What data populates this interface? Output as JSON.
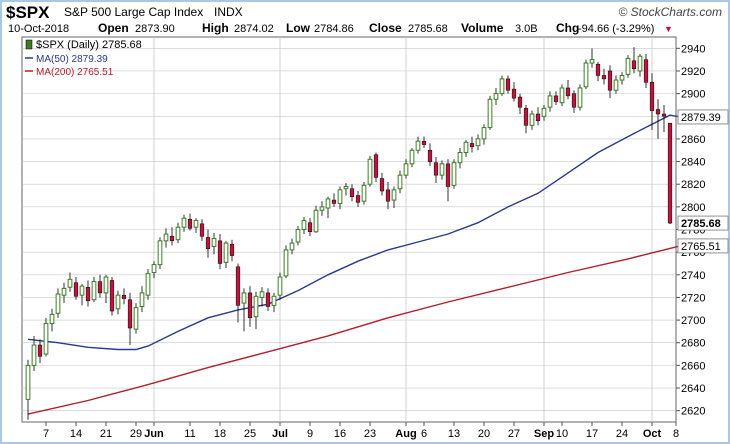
{
  "header": {
    "ticker": "$SPX",
    "name": "S&P 500 Large Cap Index",
    "exchange": "INDX",
    "brand": "© StockCharts.com",
    "date": "10-Oct-2018",
    "open_label": "Open",
    "open": "2873.90",
    "high_label": "High",
    "high": "2874.02",
    "low_label": "Low",
    "low": "2784.86",
    "close_label": "Close",
    "close": "2785.68",
    "volume_label": "Volume",
    "volume": "3.0B",
    "chg_label": "Chg",
    "chg": "-94.66 (-3.29%)",
    "chg_arrow": "▼"
  },
  "legend": {
    "price": "$SPX (Daily) 2785.68",
    "ma50": "MA(50) 2879.39",
    "ma200": "MA(200) 2765.51"
  },
  "colors": {
    "background": "#ffffff",
    "frame": "#a8c8e8",
    "plot_background": "#ffffff",
    "up": "#3b7d23",
    "down": "#c0143c",
    "ma50": "#2b3a8a",
    "ma200": "#b21e2e",
    "grid": "#c8c8c8",
    "tag_bg": "#ffffff",
    "last_tag_bg": "#ffffff"
  },
  "chart_data": {
    "type": "candlestick",
    "title": "$SPX S&P 500 Large Cap Index INDX",
    "ylim": [
      2610,
      2950
    ],
    "y_ticks": [
      2620,
      2640,
      2660,
      2680,
      2700,
      2720,
      2740,
      2760,
      2780,
      2800,
      2820,
      2840,
      2860,
      2880,
      2900,
      2920,
      2940
    ],
    "price_labels": {
      "close": "2785.68",
      "ma50": "2879.39",
      "ma200": "2765.51"
    },
    "x_labels": [
      {
        "label": "7",
        "month": false,
        "index": 3,
        "grid": false
      },
      {
        "label": "14",
        "month": false,
        "index": 8,
        "grid": false
      },
      {
        "label": "21",
        "month": false,
        "index": 13,
        "grid": false
      },
      {
        "label": "29",
        "month": false,
        "index": 18,
        "grid": false
      },
      {
        "label": "Jun",
        "month": true,
        "index": 21,
        "grid": true
      },
      {
        "label": "11",
        "month": false,
        "index": 27,
        "grid": false
      },
      {
        "label": "18",
        "month": false,
        "index": 32,
        "grid": false
      },
      {
        "label": "25",
        "month": false,
        "index": 37,
        "grid": false
      },
      {
        "label": "Jul",
        "month": true,
        "index": 42,
        "grid": true
      },
      {
        "label": "9",
        "month": false,
        "index": 47,
        "grid": false
      },
      {
        "label": "16",
        "month": false,
        "index": 52,
        "grid": false
      },
      {
        "label": "23",
        "month": false,
        "index": 57,
        "grid": false
      },
      {
        "label": "Aug",
        "month": true,
        "index": 63,
        "grid": true
      },
      {
        "label": "6",
        "month": false,
        "index": 66,
        "grid": false
      },
      {
        "label": "13",
        "month": false,
        "index": 71,
        "grid": false
      },
      {
        "label": "20",
        "month": false,
        "index": 76,
        "grid": false
      },
      {
        "label": "27",
        "month": false,
        "index": 81,
        "grid": false
      },
      {
        "label": "Sep",
        "month": true,
        "index": 86,
        "grid": true
      },
      {
        "label": "10",
        "month": false,
        "index": 89,
        "grid": false
      },
      {
        "label": "17",
        "month": false,
        "index": 94,
        "grid": false
      },
      {
        "label": "24",
        "month": false,
        "index": 99,
        "grid": false
      },
      {
        "label": "Oct",
        "month": true,
        "index": 104,
        "grid": true
      },
      {
        "label": "8",
        "month": false,
        "index": 108,
        "grid": false
      }
    ],
    "candles": [
      {
        "o": 2630,
        "h": 2665,
        "l": 2612,
        "c": 2660
      },
      {
        "o": 2660,
        "h": 2686,
        "l": 2655,
        "c": 2678
      },
      {
        "o": 2678,
        "h": 2683,
        "l": 2662,
        "c": 2668
      },
      {
        "o": 2670,
        "h": 2702,
        "l": 2668,
        "c": 2697
      },
      {
        "o": 2697,
        "h": 2710,
        "l": 2690,
        "c": 2705
      },
      {
        "o": 2706,
        "h": 2728,
        "l": 2702,
        "c": 2723
      },
      {
        "o": 2722,
        "h": 2733,
        "l": 2715,
        "c": 2728
      },
      {
        "o": 2729,
        "h": 2742,
        "l": 2725,
        "c": 2736
      },
      {
        "o": 2733,
        "h": 2738,
        "l": 2718,
        "c": 2721
      },
      {
        "o": 2722,
        "h": 2732,
        "l": 2713,
        "c": 2730
      },
      {
        "o": 2729,
        "h": 2735,
        "l": 2712,
        "c": 2717
      },
      {
        "o": 2718,
        "h": 2738,
        "l": 2716,
        "c": 2734
      },
      {
        "o": 2734,
        "h": 2740,
        "l": 2720,
        "c": 2724
      },
      {
        "o": 2724,
        "h": 2740,
        "l": 2715,
        "c": 2738
      },
      {
        "o": 2735,
        "h": 2738,
        "l": 2704,
        "c": 2708
      },
      {
        "o": 2710,
        "h": 2726,
        "l": 2705,
        "c": 2722
      },
      {
        "o": 2722,
        "h": 2728,
        "l": 2714,
        "c": 2719
      },
      {
        "o": 2718,
        "h": 2724,
        "l": 2678,
        "c": 2693
      },
      {
        "o": 2692,
        "h": 2715,
        "l": 2688,
        "c": 2711
      },
      {
        "o": 2712,
        "h": 2730,
        "l": 2707,
        "c": 2724
      },
      {
        "o": 2722,
        "h": 2745,
        "l": 2718,
        "c": 2741
      },
      {
        "o": 2742,
        "h": 2752,
        "l": 2737,
        "c": 2749
      },
      {
        "o": 2749,
        "h": 2773,
        "l": 2745,
        "c": 2770
      },
      {
        "o": 2770,
        "h": 2781,
        "l": 2764,
        "c": 2776
      },
      {
        "o": 2774,
        "h": 2782,
        "l": 2766,
        "c": 2770
      },
      {
        "o": 2771,
        "h": 2786,
        "l": 2768,
        "c": 2782
      },
      {
        "o": 2782,
        "h": 2793,
        "l": 2778,
        "c": 2790
      },
      {
        "o": 2789,
        "h": 2794,
        "l": 2779,
        "c": 2781
      },
      {
        "o": 2782,
        "h": 2790,
        "l": 2777,
        "c": 2788
      },
      {
        "o": 2785,
        "h": 2789,
        "l": 2770,
        "c": 2774
      },
      {
        "o": 2773,
        "h": 2780,
        "l": 2755,
        "c": 2763
      },
      {
        "o": 2765,
        "h": 2777,
        "l": 2758,
        "c": 2772
      },
      {
        "o": 2770,
        "h": 2776,
        "l": 2745,
        "c": 2750
      },
      {
        "o": 2751,
        "h": 2770,
        "l": 2746,
        "c": 2768
      },
      {
        "o": 2767,
        "h": 2771,
        "l": 2752,
        "c": 2757
      },
      {
        "o": 2747,
        "h": 2750,
        "l": 2698,
        "c": 2713
      },
      {
        "o": 2715,
        "h": 2728,
        "l": 2690,
        "c": 2724
      },
      {
        "o": 2724,
        "h": 2730,
        "l": 2694,
        "c": 2702
      },
      {
        "o": 2703,
        "h": 2725,
        "l": 2692,
        "c": 2721
      },
      {
        "o": 2720,
        "h": 2729,
        "l": 2712,
        "c": 2725
      },
      {
        "o": 2724,
        "h": 2728,
        "l": 2708,
        "c": 2712
      },
      {
        "o": 2713,
        "h": 2724,
        "l": 2707,
        "c": 2721
      },
      {
        "o": 2722,
        "h": 2742,
        "l": 2718,
        "c": 2738
      },
      {
        "o": 2739,
        "h": 2766,
        "l": 2737,
        "c": 2762
      },
      {
        "o": 2762,
        "h": 2772,
        "l": 2758,
        "c": 2768
      },
      {
        "o": 2769,
        "h": 2783,
        "l": 2766,
        "c": 2780
      },
      {
        "o": 2780,
        "h": 2791,
        "l": 2776,
        "c": 2788
      },
      {
        "o": 2786,
        "h": 2790,
        "l": 2774,
        "c": 2778
      },
      {
        "o": 2778,
        "h": 2801,
        "l": 2777,
        "c": 2797
      },
      {
        "o": 2797,
        "h": 2805,
        "l": 2792,
        "c": 2800
      },
      {
        "o": 2799,
        "h": 2809,
        "l": 2790,
        "c": 2807
      },
      {
        "o": 2806,
        "h": 2812,
        "l": 2800,
        "c": 2803
      },
      {
        "o": 2803,
        "h": 2818,
        "l": 2798,
        "c": 2815
      },
      {
        "o": 2816,
        "h": 2821,
        "l": 2810,
        "c": 2818
      },
      {
        "o": 2816,
        "h": 2820,
        "l": 2805,
        "c": 2809
      },
      {
        "o": 2810,
        "h": 2814,
        "l": 2800,
        "c": 2804
      },
      {
        "o": 2805,
        "h": 2822,
        "l": 2802,
        "c": 2819
      },
      {
        "o": 2820,
        "h": 2845,
        "l": 2818,
        "c": 2842
      },
      {
        "o": 2846,
        "h": 2848,
        "l": 2822,
        "c": 2826
      },
      {
        "o": 2825,
        "h": 2830,
        "l": 2810,
        "c": 2814
      },
      {
        "o": 2815,
        "h": 2822,
        "l": 2798,
        "c": 2805
      },
      {
        "o": 2806,
        "h": 2818,
        "l": 2799,
        "c": 2815
      },
      {
        "o": 2816,
        "h": 2832,
        "l": 2812,
        "c": 2828
      },
      {
        "o": 2828,
        "h": 2842,
        "l": 2825,
        "c": 2838
      },
      {
        "o": 2838,
        "h": 2852,
        "l": 2835,
        "c": 2850
      },
      {
        "o": 2850,
        "h": 2862,
        "l": 2847,
        "c": 2858
      },
      {
        "o": 2858,
        "h": 2862,
        "l": 2852,
        "c": 2855
      },
      {
        "o": 2850,
        "h": 2856,
        "l": 2836,
        "c": 2840
      },
      {
        "o": 2839,
        "h": 2844,
        "l": 2821,
        "c": 2828
      },
      {
        "o": 2828,
        "h": 2841,
        "l": 2824,
        "c": 2838
      },
      {
        "o": 2838,
        "h": 2842,
        "l": 2805,
        "c": 2818
      },
      {
        "o": 2819,
        "h": 2842,
        "l": 2816,
        "c": 2839
      },
      {
        "o": 2839,
        "h": 2852,
        "l": 2834,
        "c": 2848
      },
      {
        "o": 2848,
        "h": 2859,
        "l": 2844,
        "c": 2857
      },
      {
        "o": 2856,
        "h": 2862,
        "l": 2848,
        "c": 2853
      },
      {
        "o": 2854,
        "h": 2864,
        "l": 2850,
        "c": 2860
      },
      {
        "o": 2860,
        "h": 2873,
        "l": 2855,
        "c": 2870
      },
      {
        "o": 2870,
        "h": 2898,
        "l": 2868,
        "c": 2895
      },
      {
        "o": 2895,
        "h": 2905,
        "l": 2890,
        "c": 2900
      },
      {
        "o": 2900,
        "h": 2916,
        "l": 2898,
        "c": 2913
      },
      {
        "o": 2913,
        "h": 2916,
        "l": 2900,
        "c": 2903
      },
      {
        "o": 2904,
        "h": 2910,
        "l": 2893,
        "c": 2896
      },
      {
        "o": 2897,
        "h": 2900,
        "l": 2882,
        "c": 2888
      },
      {
        "o": 2887,
        "h": 2890,
        "l": 2865,
        "c": 2872
      },
      {
        "o": 2872,
        "h": 2885,
        "l": 2868,
        "c": 2882
      },
      {
        "o": 2882,
        "h": 2888,
        "l": 2872,
        "c": 2876
      },
      {
        "o": 2880,
        "h": 2890,
        "l": 2876,
        "c": 2887
      },
      {
        "o": 2888,
        "h": 2902,
        "l": 2884,
        "c": 2898
      },
      {
        "o": 2898,
        "h": 2902,
        "l": 2890,
        "c": 2893
      },
      {
        "o": 2892,
        "h": 2908,
        "l": 2889,
        "c": 2905
      },
      {
        "o": 2905,
        "h": 2912,
        "l": 2895,
        "c": 2898
      },
      {
        "o": 2900,
        "h": 2903,
        "l": 2883,
        "c": 2888
      },
      {
        "o": 2888,
        "h": 2908,
        "l": 2885,
        "c": 2905
      },
      {
        "o": 2906,
        "h": 2930,
        "l": 2904,
        "c": 2927
      },
      {
        "o": 2927,
        "h": 2940,
        "l": 2923,
        "c": 2930
      },
      {
        "o": 2926,
        "h": 2928,
        "l": 2911,
        "c": 2916
      },
      {
        "o": 2916,
        "h": 2922,
        "l": 2908,
        "c": 2913
      },
      {
        "o": 2920,
        "h": 2925,
        "l": 2896,
        "c": 2903
      },
      {
        "o": 2903,
        "h": 2916,
        "l": 2900,
        "c": 2912
      },
      {
        "o": 2912,
        "h": 2919,
        "l": 2908,
        "c": 2916
      },
      {
        "o": 2917,
        "h": 2934,
        "l": 2914,
        "c": 2931
      },
      {
        "o": 2929,
        "h": 2941,
        "l": 2918,
        "c": 2922
      },
      {
        "o": 2920,
        "h": 2935,
        "l": 2915,
        "c": 2933
      },
      {
        "o": 2930,
        "h": 2935,
        "l": 2905,
        "c": 2910
      },
      {
        "o": 2910,
        "h": 2918,
        "l": 2868,
        "c": 2885
      },
      {
        "o": 2886,
        "h": 2895,
        "l": 2860,
        "c": 2882
      },
      {
        "o": 2882,
        "h": 2890,
        "l": 2866,
        "c": 2880
      },
      {
        "o": 2873.9,
        "h": 2874.02,
        "l": 2784.86,
        "c": 2785.68
      }
    ],
    "ma50_points": [
      [
        0,
        2683
      ],
      [
        5,
        2680
      ],
      [
        10,
        2676
      ],
      [
        15,
        2674
      ],
      [
        18,
        2674
      ],
      [
        20,
        2677
      ],
      [
        25,
        2690
      ],
      [
        30,
        2702
      ],
      [
        35,
        2709
      ],
      [
        40,
        2714
      ],
      [
        45,
        2726
      ],
      [
        50,
        2740
      ],
      [
        55,
        2752
      ],
      [
        60,
        2762
      ],
      [
        65,
        2769
      ],
      [
        70,
        2776
      ],
      [
        75,
        2786
      ],
      [
        80,
        2800
      ],
      [
        85,
        2812
      ],
      [
        90,
        2830
      ],
      [
        95,
        2848
      ],
      [
        100,
        2862
      ],
      [
        104,
        2873
      ],
      [
        107,
        2881
      ],
      [
        109,
        2879
      ]
    ],
    "ma200_points": [
      [
        0,
        2617
      ],
      [
        10,
        2629
      ],
      [
        20,
        2643
      ],
      [
        30,
        2658
      ],
      [
        40,
        2672
      ],
      [
        50,
        2686
      ],
      [
        60,
        2702
      ],
      [
        70,
        2716
      ],
      [
        80,
        2729
      ],
      [
        90,
        2742
      ],
      [
        100,
        2754
      ],
      [
        109,
        2766
      ]
    ]
  }
}
